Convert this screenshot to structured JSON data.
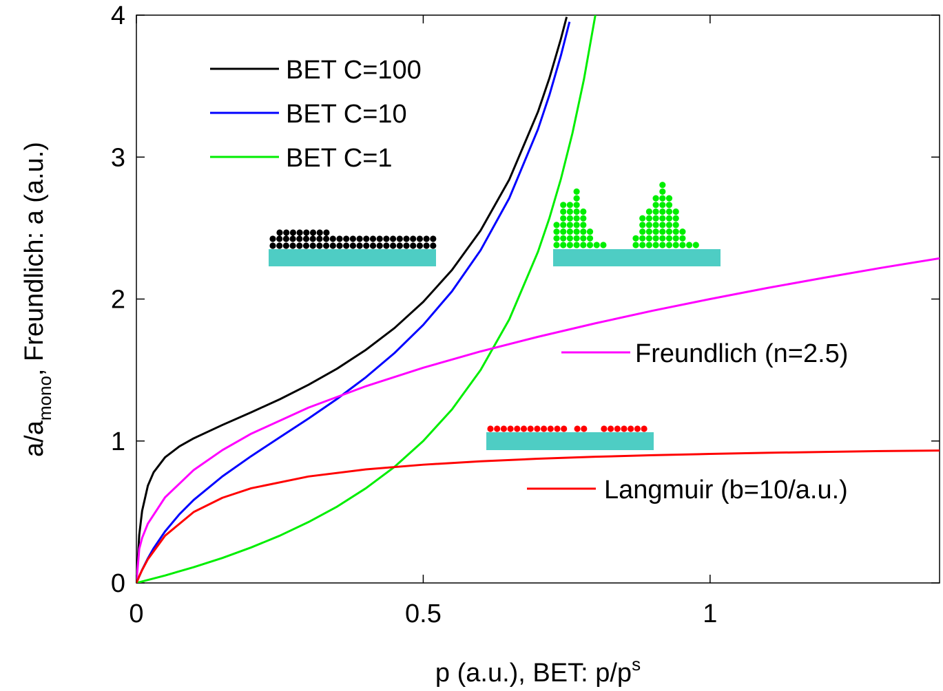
{
  "chart_data": {
    "type": "line",
    "xlabel": [
      "p (a.u.), BET: p/p",
      "s"
    ],
    "ylabel": [
      "a/a",
      "mono",
      ", Freundlich: a (a.u.)"
    ],
    "xlim": [
      0,
      1.4
    ],
    "ylim": [
      0,
      4
    ],
    "xticks": [
      0,
      0.5,
      1
    ],
    "yticks": [
      0,
      1,
      2,
      3,
      4
    ],
    "grid": false,
    "series": [
      {
        "name": "BET C=100",
        "color": "#000000",
        "x": [
          0,
          0.005,
          0.01,
          0.02,
          0.03,
          0.05,
          0.075,
          0.1,
          0.15,
          0.2,
          0.25,
          0.3,
          0.35,
          0.4,
          0.45,
          0.5,
          0.55,
          0.6,
          0.65,
          0.7,
          0.72,
          0.74,
          0.75
        ],
        "values": [
          0,
          0.338,
          0.508,
          0.685,
          0.779,
          0.885,
          0.962,
          1.019,
          1.113,
          1.202,
          1.294,
          1.396,
          1.51,
          1.642,
          1.796,
          1.98,
          2.204,
          2.483,
          2.842,
          3.319,
          3.557,
          3.833,
          3.987
        ]
      },
      {
        "name": "BET C=10",
        "color": "#0000ff",
        "x": [
          0,
          0.01,
          0.02,
          0.03,
          0.05,
          0.075,
          0.1,
          0.15,
          0.2,
          0.25,
          0.3,
          0.35,
          0.4,
          0.45,
          0.5,
          0.55,
          0.6,
          0.65,
          0.7,
          0.72,
          0.74,
          0.755
        ],
        "values": [
          0,
          0.0927,
          0.173,
          0.244,
          0.363,
          0.484,
          0.585,
          0.751,
          0.893,
          1.026,
          1.158,
          1.297,
          1.449,
          1.62,
          1.818,
          2.054,
          2.344,
          2.711,
          3.196,
          3.438,
          3.716,
          3.953
        ]
      },
      {
        "name": "BET C=1",
        "color": "#00ee00",
        "x": [
          0,
          0.05,
          0.1,
          0.15,
          0.2,
          0.25,
          0.3,
          0.35,
          0.4,
          0.45,
          0.5,
          0.55,
          0.6,
          0.65,
          0.7,
          0.72,
          0.74,
          0.76,
          0.78,
          0.8
        ],
        "values": [
          0,
          0.0526,
          0.111,
          0.176,
          0.25,
          0.333,
          0.429,
          0.538,
          0.667,
          0.818,
          1,
          1.222,
          1.5,
          1.857,
          2.333,
          2.571,
          2.846,
          3.167,
          3.545,
          4
        ]
      },
      {
        "name": "Freundlich (n=2.5)",
        "color": "#ff00ff",
        "x": [
          0,
          0.005,
          0.01,
          0.02,
          0.05,
          0.1,
          0.15,
          0.2,
          0.3,
          0.4,
          0.5,
          0.6,
          0.7,
          0.8,
          0.9,
          1,
          1.1,
          1.2,
          1.3,
          1.4
        ],
        "values": [
          0,
          0.24,
          0.317,
          0.418,
          0.603,
          0.796,
          0.936,
          1.051,
          1.235,
          1.386,
          1.516,
          1.631,
          1.734,
          1.829,
          1.918,
          2,
          2.078,
          2.151,
          2.221,
          2.287
        ]
      },
      {
        "name": "Langmuir (b=10/a.u.)",
        "color": "#ff0000",
        "x": [
          0,
          0.005,
          0.01,
          0.02,
          0.05,
          0.1,
          0.15,
          0.2,
          0.3,
          0.4,
          0.5,
          0.6,
          0.7,
          0.8,
          0.9,
          1,
          1.1,
          1.2,
          1.3,
          1.4
        ],
        "values": [
          0,
          0.0476,
          0.0909,
          0.167,
          0.333,
          0.5,
          0.6,
          0.667,
          0.75,
          0.8,
          0.833,
          0.857,
          0.875,
          0.889,
          0.9,
          0.909,
          0.917,
          0.923,
          0.929,
          0.933
        ]
      }
    ]
  }
}
